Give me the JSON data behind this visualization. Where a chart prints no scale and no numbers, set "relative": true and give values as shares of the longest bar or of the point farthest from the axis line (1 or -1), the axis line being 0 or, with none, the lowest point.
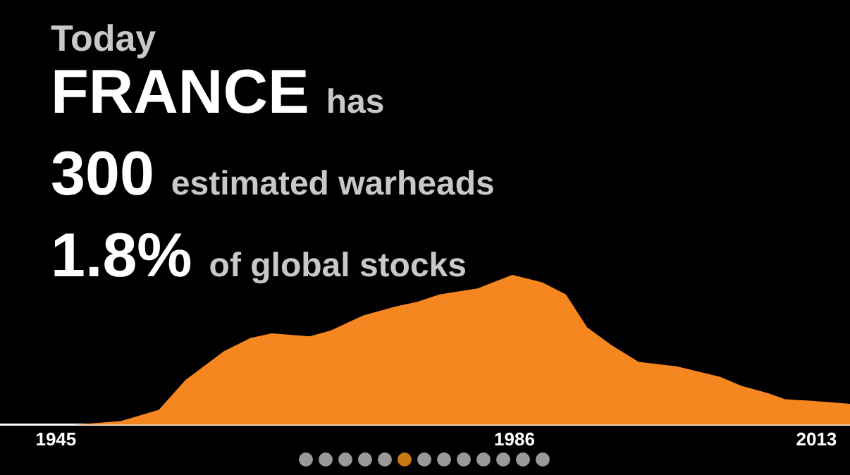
{
  "chart_data": {
    "type": "area",
    "relative": true,
    "title": "Today",
    "annotations": [
      "FRANCE",
      "has",
      "300",
      "estimated warheads",
      "1.8%",
      "of global stocks"
    ],
    "xlim": [
      1940,
      2016
    ],
    "xticks": [
      1945,
      1986,
      2013
    ],
    "series": [
      {
        "color": "#f58620",
        "x": [
          1946.5,
          1950.8,
          1954.2,
          1956.6,
          1960,
          1962.4,
          1964.3,
          1967.7,
          1969.6,
          1972.5,
          1975.4,
          1977.3,
          1979.3,
          1982.7,
          1985.8,
          1988.5,
          1990.6,
          1992.5,
          1994.7,
          1997.1,
          2000.5,
          2004.4,
          2006.3,
          2008.7,
          2010.2,
          2012.6,
          2016
        ],
        "values": [
          0,
          0.025,
          0.1,
          0.3,
          0.49,
          0.58,
          0.61,
          0.59,
          0.63,
          0.73,
          0.79,
          0.82,
          0.87,
          0.91,
          1,
          0.95,
          0.87,
          0.65,
          0.53,
          0.42,
          0.39,
          0.32,
          0.26,
          0.21,
          0.17,
          0.16,
          0.14
        ]
      }
    ]
  }
}
